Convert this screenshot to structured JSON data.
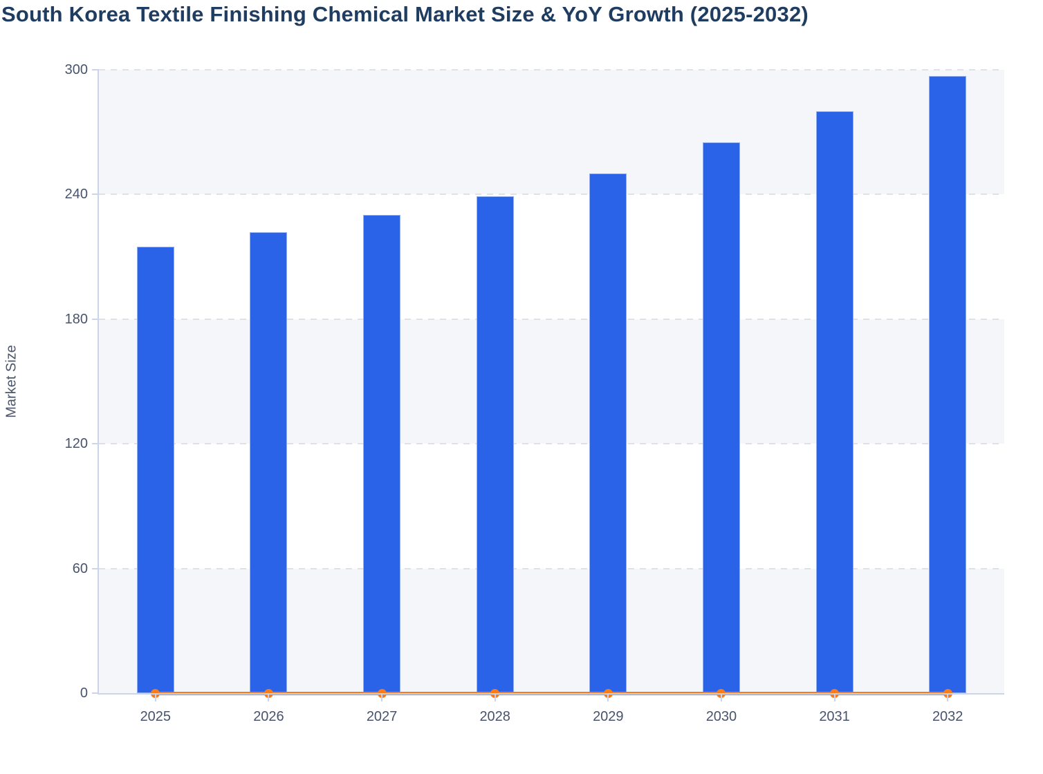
{
  "chart_data": {
    "type": "bar",
    "title": "South Korea Textile Finishing Chemical Market Size & YoY Growth (2025-2032)",
    "xlabel": "",
    "ylabel": "Market Size",
    "categories": [
      "2025",
      "2026",
      "2027",
      "2028",
      "2029",
      "2030",
      "2031",
      "2032"
    ],
    "series": [
      {
        "name": "Market Size",
        "type": "bar",
        "color": "#2b63e8",
        "values": [
          215,
          222,
          230,
          239,
          250,
          265,
          280,
          297
        ]
      },
      {
        "name": "YoY Growth",
        "type": "line",
        "color": "#f87c1a",
        "values": [
          0,
          0,
          0,
          0,
          0,
          0,
          0,
          0
        ]
      }
    ],
    "ylim": [
      0,
      300
    ],
    "yticks": [
      0,
      60,
      120,
      180,
      240,
      300
    ],
    "grid": "horizontal dashed",
    "legend_position": "none",
    "plot_bands": [
      [
        0,
        60
      ],
      [
        120,
        180
      ],
      [
        240,
        300
      ]
    ],
    "colors": {
      "band": "#f5f6fa",
      "gridline": "#e0e1e6",
      "axis": "#ccd4ec",
      "tick_label": "#47536d",
      "title": "#1f3c61"
    }
  }
}
